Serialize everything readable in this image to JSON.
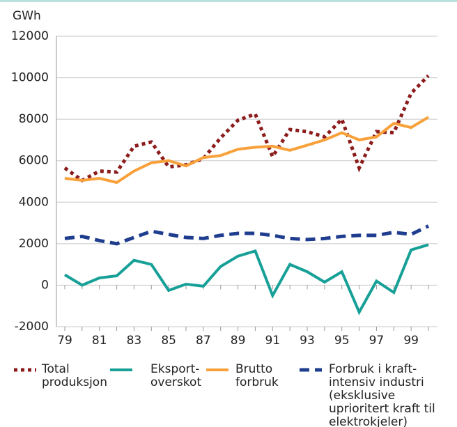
{
  "chart_data": {
    "type": "line",
    "y_unit_label": "GWh",
    "categories": [
      "79",
      null,
      "81",
      null,
      "83",
      null,
      "85",
      null,
      "87",
      null,
      "89",
      null,
      "91",
      null,
      "93",
      null,
      "95",
      null,
      "97",
      null,
      "99",
      null
    ],
    "series": [
      {
        "name": "Total produksjon",
        "color": "#8c1c1c",
        "dash": "dotted",
        "values": [
          5650,
          5050,
          5500,
          5450,
          6700,
          6900,
          5700,
          5800,
          6100,
          7100,
          7950,
          8250,
          6200,
          7500,
          7400,
          7150,
          8000,
          5650,
          7400,
          7350,
          9250,
          10100
        ]
      },
      {
        "name": "Eksport-overskot",
        "color": "#17a097",
        "dash": "solid",
        "values": [
          500,
          0,
          350,
          450,
          1200,
          1000,
          -250,
          50,
          -50,
          900,
          1400,
          1650,
          -500,
          1000,
          650,
          150,
          650,
          -1300,
          200,
          -350,
          1700,
          1950
        ]
      },
      {
        "name": "Brutto forbruk",
        "color": "#f8a13a",
        "dash": "solid",
        "values": [
          5150,
          5050,
          5150,
          4950,
          5500,
          5900,
          6000,
          5750,
          6150,
          6250,
          6550,
          6650,
          6700,
          6500,
          6750,
          7000,
          7350,
          7000,
          7150,
          7800,
          7600,
          8100
        ]
      },
      {
        "name": "Forbruk i kraft-intensiv industri (eksklusive uprioritert kraft til elektrokjeler)",
        "color": "#1f3d8f",
        "dash": "dashed",
        "values": [
          2250,
          2350,
          2150,
          2000,
          2300,
          2600,
          2450,
          2300,
          2250,
          2400,
          2500,
          2500,
          2400,
          2250,
          2200,
          2250,
          2350,
          2400,
          2400,
          2550,
          2450,
          2850
        ]
      }
    ],
    "ylim": [
      -2000,
      12000
    ],
    "yticks": [
      -2000,
      0,
      2000,
      4000,
      6000,
      8000,
      10000,
      12000
    ],
    "grid": true
  }
}
